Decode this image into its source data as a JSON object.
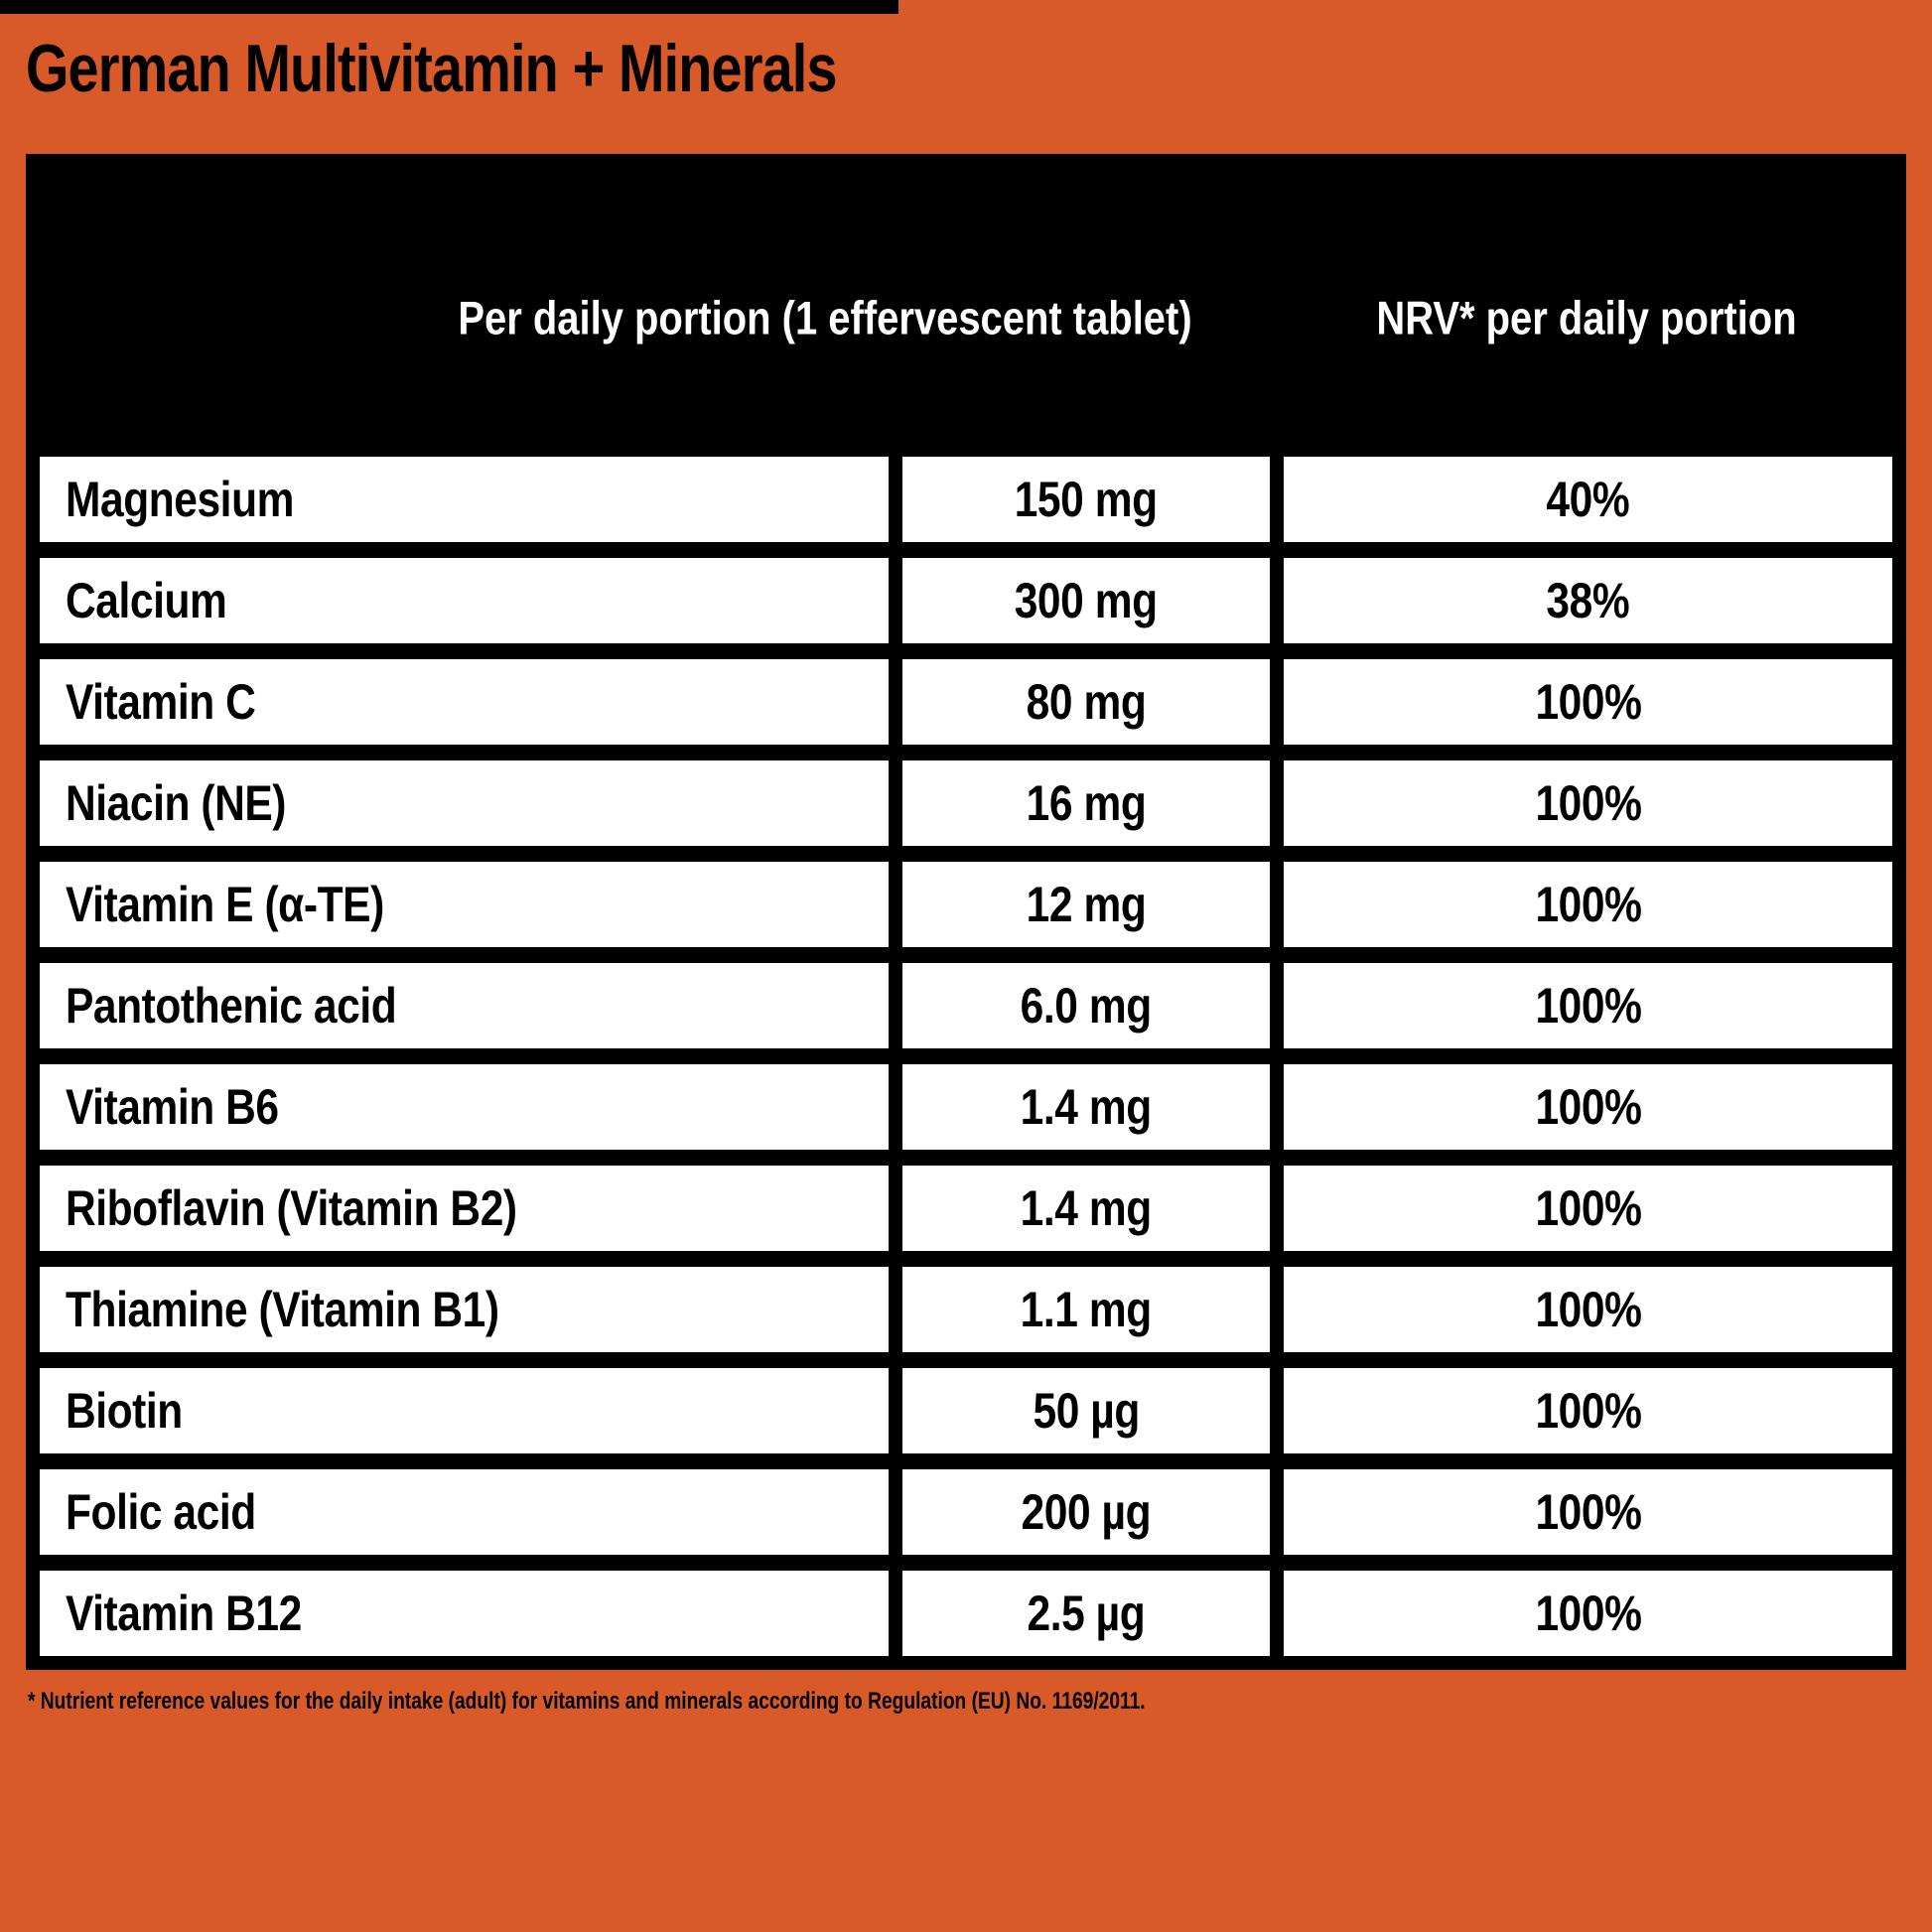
{
  "page": {
    "title": "German Multivitamin + Minerals",
    "footnote": "* Nutrient reference values for the daily intake (adult) for vitamins and minerals according to Regulation (EU) No. 1169/2011."
  },
  "table": {
    "headers": {
      "col_amount": "Per daily portion (1 effervescent tablet)",
      "col_nrv": "NRV* per daily portion"
    },
    "rows": [
      {
        "nutrient": "Magnesium",
        "amount": "150 mg",
        "nrv": "40%"
      },
      {
        "nutrient": "Calcium",
        "amount": "300 mg",
        "nrv": "38%"
      },
      {
        "nutrient": "Vitamin C",
        "amount": "80 mg",
        "nrv": "100%"
      },
      {
        "nutrient": "Niacin (NE)",
        "amount": "16 mg",
        "nrv": "100%"
      },
      {
        "nutrient": "Vitamin E (α-TE)",
        "amount": "12 mg",
        "nrv": "100%"
      },
      {
        "nutrient": "Pantothenic acid",
        "amount": "6.0 mg",
        "nrv": "100%"
      },
      {
        "nutrient": "Vitamin B6",
        "amount": "1.4 mg",
        "nrv": "100%"
      },
      {
        "nutrient": "Riboflavin (Vitamin B2)",
        "amount": "1.4 mg",
        "nrv": "100%"
      },
      {
        "nutrient": "Thiamine (Vitamin B1)",
        "amount": "1.1 mg",
        "nrv": "100%"
      },
      {
        "nutrient": "Biotin",
        "amount": "50 µg",
        "nrv": "100%"
      },
      {
        "nutrient": "Folic acid",
        "amount": "200 µg",
        "nrv": "100%"
      },
      {
        "nutrient": "Vitamin B12",
        "amount": "2.5 µg",
        "nrv": "100%"
      }
    ]
  },
  "colors": {
    "background_orange": "#D75A28",
    "table_black": "#000000",
    "cell_white": "#FFFFFF",
    "header_text_white": "#FFFFFF",
    "body_text_black": "#000000"
  }
}
